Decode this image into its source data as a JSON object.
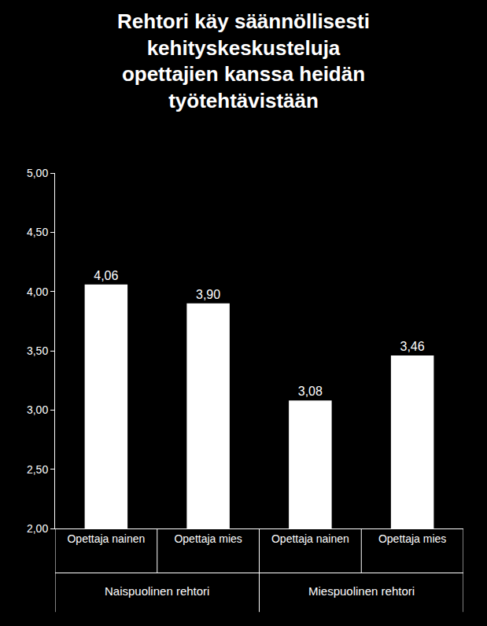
{
  "chart_data": {
    "type": "bar",
    "title": "Rehtori käy säännöllisesti\nkehityskeskusteluja\nopettajien kanssa heidän\ntyötehtävistään",
    "categories": [
      "Opettaja nainen",
      "Opettaja mies",
      "Opettaja nainen",
      "Opettaja mies"
    ],
    "category_groups": [
      "Naispuolinen rehtori",
      "Naispuolinen rehtori",
      "Miespuolinen rehtori",
      "Miespuolinen rehtori"
    ],
    "values": [
      4.06,
      3.9,
      3.08,
      3.46
    ],
    "value_labels": [
      "4,06",
      "3,90",
      "3,08",
      "3,46"
    ],
    "color": "#ffffff",
    "ylim": [
      2,
      5
    ],
    "yticks": [
      {
        "value": 2,
        "label": "2,00"
      },
      {
        "value": 2.5,
        "label": "2,50"
      },
      {
        "value": 3,
        "label": "3,00"
      },
      {
        "value": 3.5,
        "label": "3,50"
      },
      {
        "value": 4,
        "label": "4,00"
      },
      {
        "value": 4.5,
        "label": "4,50"
      },
      {
        "value": 5,
        "label": "5,00"
      }
    ],
    "grid": false,
    "data_labels": true
  }
}
